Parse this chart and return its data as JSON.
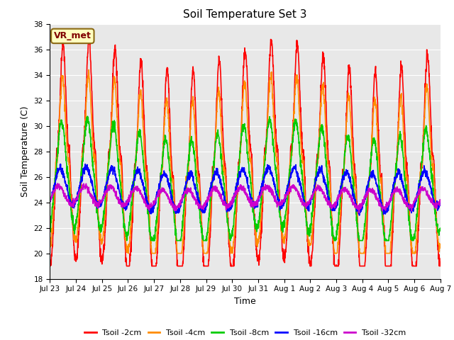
{
  "title": "Soil Temperature Set 3",
  "xlabel": "Time",
  "ylabel": "Soil Temperature (C)",
  "ylim": [
    18,
    38
  ],
  "yticks": [
    18,
    20,
    22,
    24,
    26,
    28,
    30,
    32,
    34,
    36,
    38
  ],
  "fig_bg_color": "#ffffff",
  "plot_bg_color": "#e8e8e8",
  "annotation_text": "VR_met",
  "annotation_bg": "#ffffc0",
  "annotation_border": "#8b6914",
  "annotation_text_color": "#800000",
  "colors": {
    "Tsoil -2cm": "#ff0000",
    "Tsoil -4cm": "#ff8c00",
    "Tsoil -8cm": "#00cc00",
    "Tsoil -16cm": "#0000ff",
    "Tsoil -32cm": "#cc00cc"
  },
  "series_order": [
    "Tsoil -2cm",
    "Tsoil -4cm",
    "Tsoil -8cm",
    "Tsoil -16cm",
    "Tsoil -32cm"
  ],
  "n_days": 15,
  "tick_labels": [
    "Jul 23",
    "Jul 24",
    "Jul 25",
    "Jul 26",
    "Jul 27",
    "Jul 28",
    "Jul 29",
    "Jul 30",
    "Jul 31",
    "Aug 1",
    "Aug 2",
    "Aug 3",
    "Aug 4",
    "Aug 5",
    "Aug 6",
    "Aug 7"
  ],
  "tick_positions": [
    0,
    1,
    2,
    3,
    4,
    5,
    6,
    7,
    8,
    9,
    10,
    11,
    12,
    13,
    14,
    15
  ],
  "points_per_day": 144,
  "grid_color": "#ffffff",
  "linewidth": 1.2
}
